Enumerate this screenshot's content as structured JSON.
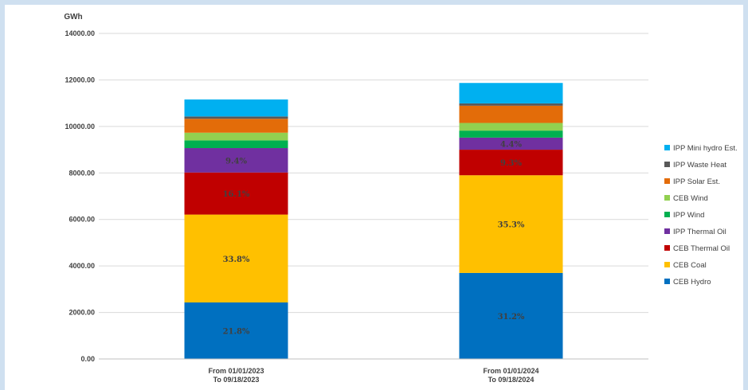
{
  "chart_data": {
    "type": "bar",
    "stacked": true,
    "ylabel": "GWh",
    "ylim": [
      0,
      14000
    ],
    "yticks": [
      "0.00",
      "2000.00",
      "4000.00",
      "6000.00",
      "8000.00",
      "10000.00",
      "12000.00",
      "14000.00"
    ],
    "grid": true,
    "legend_position": "right",
    "categories": [
      [
        "From  01/01/2023",
        "To  09/18/2023"
      ],
      [
        "From  01/01/2024",
        "To  09/18/2024"
      ]
    ],
    "series": [
      {
        "name": "CEB Hydro",
        "color": "#0070c0",
        "values": [
          2430,
          3700
        ],
        "labels": [
          "21.8%",
          "31.2%"
        ]
      },
      {
        "name": "CEB Coal",
        "color": "#ffc000",
        "values": [
          3780,
          4200
        ],
        "labels": [
          "33.8%",
          "35.3%"
        ]
      },
      {
        "name": "CEB Thermal Oil",
        "color": "#c00000",
        "values": [
          1810,
          1100
        ],
        "labels": [
          "16.1%",
          "9.3%"
        ]
      },
      {
        "name": "IPP Thermal Oil",
        "color": "#7030a0",
        "values": [
          1050,
          520
        ],
        "labels": [
          "9.4%",
          "4.4%"
        ]
      },
      {
        "name": "IPP Wind",
        "color": "#00b050",
        "values": [
          330,
          300
        ],
        "labels": [
          "",
          ""
        ]
      },
      {
        "name": "CEB Wind",
        "color": "#92d050",
        "values": [
          330,
          330
        ],
        "labels": [
          "",
          ""
        ]
      },
      {
        "name": "IPP Solar Est.",
        "color": "#e36c09",
        "values": [
          600,
          740
        ],
        "labels": [
          "",
          ""
        ]
      },
      {
        "name": "IPP Waste Heat",
        "color": "#595959",
        "values": [
          100,
          100
        ],
        "labels": [
          "",
          ""
        ]
      },
      {
        "name": "IPP Mini hydro Est.",
        "color": "#00b0f0",
        "values": [
          730,
          880
        ],
        "labels": [
          "",
          ""
        ]
      }
    ],
    "legend_order": [
      "IPP Mini hydro Est.",
      "IPP Waste Heat",
      "IPP Solar Est.",
      "CEB Wind",
      "IPP Wind",
      "IPP Thermal Oil",
      "CEB Thermal Oil",
      "CEB Coal",
      "CEB Hydro"
    ]
  }
}
